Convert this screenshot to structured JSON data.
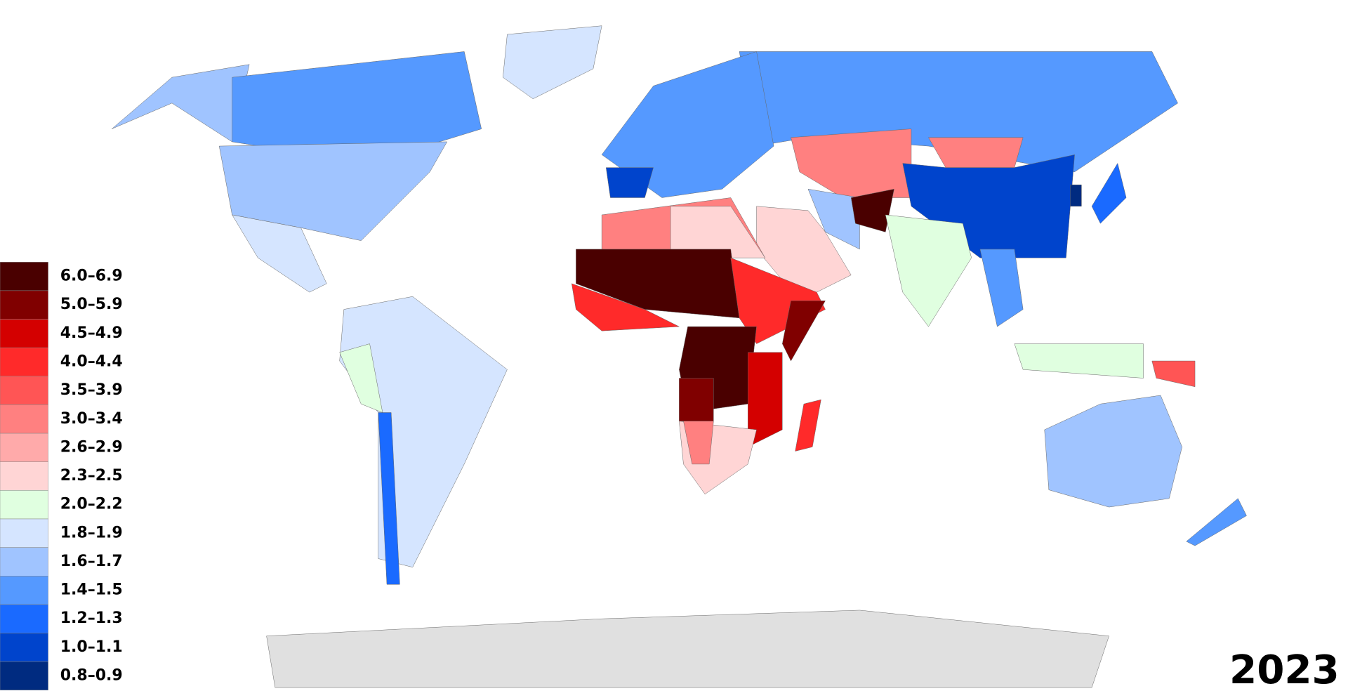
{
  "year": "2023",
  "legend": {
    "items": [
      {
        "label": "6.0–6.9",
        "color": "#4a0000"
      },
      {
        "label": "5.0–5.9",
        "color": "#800000"
      },
      {
        "label": "4.5–4.9",
        "color": "#d40000"
      },
      {
        "label": "4.0–4.4",
        "color": "#ff2a2a"
      },
      {
        "label": "3.5–3.9",
        "color": "#ff5555"
      },
      {
        "label": "3.0–3.4",
        "color": "#ff8080"
      },
      {
        "label": "2.6–2.9",
        "color": "#ffaaaa"
      },
      {
        "label": "2.3–2.5",
        "color": "#ffd5d5"
      },
      {
        "label": "2.0–2.2",
        "color": "#e0ffe0"
      },
      {
        "label": "1.8–1.9",
        "color": "#d5e5ff"
      },
      {
        "label": "1.6–1.7",
        "color": "#a0c4ff"
      },
      {
        "label": "1.4–1.5",
        "color": "#5599ff"
      },
      {
        "label": "1.2–1.3",
        "color": "#1a6aff"
      },
      {
        "label": "1.0–1.1",
        "color": "#0044cc"
      },
      {
        "label": "0.8–0.9",
        "color": "#002b80"
      }
    ]
  }
}
